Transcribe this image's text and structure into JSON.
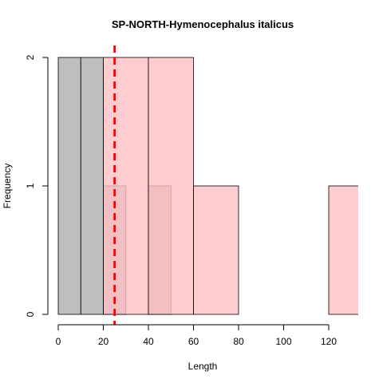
{
  "chart_data": {
    "type": "histogram",
    "title": "SP-NORTH-Hymenocephalus italicus",
    "xlabel": "Length",
    "ylabel": "Frequency",
    "xlim": [
      0,
      132
    ],
    "ylim": [
      0,
      2
    ],
    "x_ticks": [
      0,
      20,
      40,
      60,
      80,
      100,
      120
    ],
    "y_ticks": [
      0,
      1,
      2
    ],
    "series": [
      {
        "color": "#bebebe",
        "bins": [
          {
            "start": 0,
            "end": 10,
            "count": 2
          },
          {
            "start": 10,
            "end": 20,
            "count": 2
          },
          {
            "start": 20,
            "end": 30,
            "count": 1
          },
          {
            "start": 30,
            "end": 40,
            "count": 0
          },
          {
            "start": 40,
            "end": 50,
            "count": 1
          }
        ]
      },
      {
        "color": "#ffc0c4",
        "bins": [
          {
            "start": 20,
            "end": 40,
            "count": 2
          },
          {
            "start": 40,
            "end": 60,
            "count": 2
          },
          {
            "start": 60,
            "end": 80,
            "count": 1
          },
          {
            "start": 80,
            "end": 100,
            "count": 0
          },
          {
            "start": 100,
            "end": 120,
            "count": 0
          },
          {
            "start": 120,
            "end": 140,
            "count": 1
          }
        ]
      }
    ],
    "reference_line": {
      "x": 25,
      "color": "#ff0000",
      "style": "dashed"
    },
    "grid": false,
    "legend": "none"
  }
}
